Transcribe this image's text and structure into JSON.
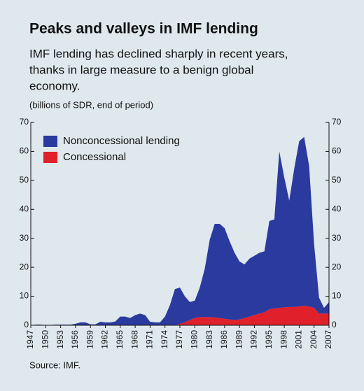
{
  "chart_data": {
    "type": "stacked_area",
    "title": "Peaks and valleys in IMF lending",
    "subtitle": [
      "IMF lending has declined sharply in recent years,",
      "thanks in large measure to a benign global",
      "economy."
    ],
    "units": "(billions of SDR, end of period)",
    "source": "Source: IMF.",
    "x": [
      1947,
      1948,
      1949,
      1950,
      1951,
      1952,
      1953,
      1954,
      1955,
      1956,
      1957,
      1958,
      1959,
      1960,
      1961,
      1962,
      1963,
      1964,
      1965,
      1966,
      1967,
      1968,
      1969,
      1970,
      1971,
      1972,
      1973,
      1974,
      1975,
      1976,
      1977,
      1978,
      1979,
      1980,
      1981,
      1982,
      1983,
      1984,
      1985,
      1986,
      1987,
      1988,
      1989,
      1990,
      1991,
      1992,
      1993,
      1994,
      1995,
      1996,
      1997,
      1998,
      1999,
      2000,
      2001,
      2002,
      2003,
      2004,
      2005,
      2006,
      2007
    ],
    "xlim": [
      1947,
      2007
    ],
    "xticks": [
      1947,
      1950,
      1953,
      1956,
      1959,
      1962,
      1965,
      1968,
      1971,
      1974,
      1977,
      1980,
      1983,
      1986,
      1989,
      1992,
      1995,
      1998,
      2001,
      2004,
      2007
    ],
    "ylim": [
      0,
      70
    ],
    "yticks": [
      0,
      10,
      20,
      30,
      40,
      50,
      60,
      70
    ],
    "y2lim": [
      0,
      70
    ],
    "y2ticks": [
      0,
      10,
      20,
      30,
      40,
      50,
      60,
      70
    ],
    "series": [
      {
        "name": "Nonconcessional lending",
        "color": "#2b3a9e",
        "values": [
          0,
          0.2,
          0.2,
          0.1,
          0.1,
          0.2,
          0.2,
          0.2,
          0.2,
          0.5,
          1,
          1,
          0.3,
          0.3,
          1.2,
          1,
          1,
          1.3,
          3,
          3,
          2.5,
          3.5,
          4,
          3.5,
          1.2,
          1,
          1,
          3,
          7,
          12.5,
          12.5,
          9,
          6.2,
          6,
          10.2,
          16.7,
          26.7,
          32.3,
          32.5,
          31.3,
          27,
          23.2,
          20,
          18.5,
          20,
          20.5,
          21,
          21,
          30.5,
          30.7,
          54,
          44.8,
          36.7,
          47.7,
          57,
          58.3,
          48.5,
          22,
          5.5,
          2,
          4
        ]
      },
      {
        "name": "Concessional",
        "color": "#e0202a",
        "values": [
          0,
          0,
          0,
          0,
          0,
          0,
          0,
          0,
          0,
          0,
          0,
          0,
          0,
          0,
          0,
          0,
          0,
          0,
          0,
          0,
          0,
          0,
          0,
          0,
          0,
          0,
          0,
          0,
          0,
          0,
          0.5,
          1,
          1.8,
          2.5,
          2.8,
          2.8,
          2.8,
          2.7,
          2.5,
          2.2,
          2,
          1.8,
          2,
          2.5,
          3,
          3.5,
          4,
          4.5,
          5.5,
          5.8,
          6,
          6.2,
          6.3,
          6.3,
          6.5,
          6.7,
          6.5,
          6,
          4,
          4,
          4
        ]
      }
    ],
    "legend": "upper left"
  }
}
